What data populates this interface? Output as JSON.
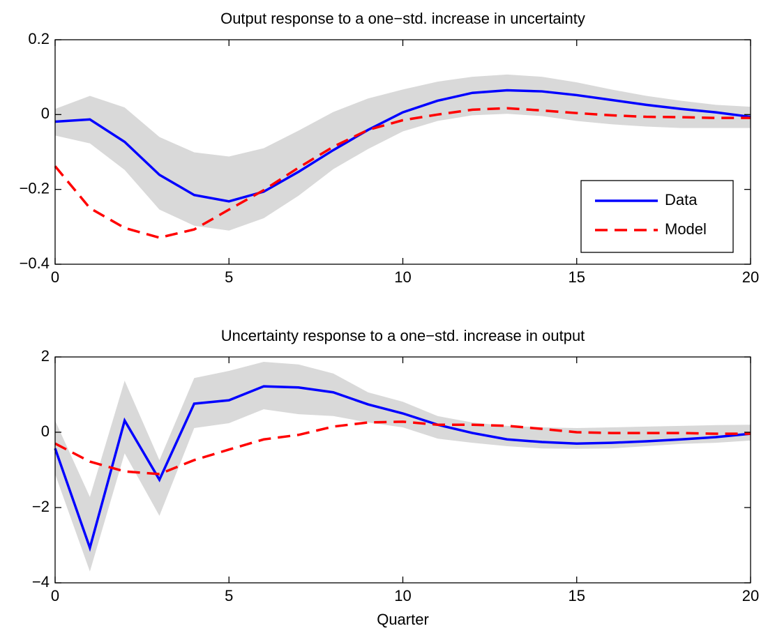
{
  "chart_data": [
    {
      "type": "line",
      "title": "Output response to a one−std. increase in uncertainty",
      "x": [
        0,
        1,
        2,
        3,
        4,
        5,
        6,
        7,
        8,
        9,
        10,
        11,
        12,
        13,
        14,
        15,
        16,
        17,
        18,
        19,
        20
      ],
      "xlim": [
        0,
        20
      ],
      "xticks": [
        0,
        5,
        10,
        15,
        20
      ],
      "ylim": [
        -0.4,
        0.2
      ],
      "yticks": [
        0.2,
        0,
        {
          "value": -0.2,
          "label": "−0.2"
        },
        {
          "value": -0.4,
          "label": "−0.4"
        }
      ],
      "legend": "lower right",
      "band": {
        "color": "#d9d9d9",
        "upper": [
          0.015,
          0.05,
          0.019,
          -0.06,
          -0.101,
          -0.112,
          -0.09,
          -0.043,
          0.007,
          0.043,
          0.067,
          0.088,
          0.101,
          0.107,
          0.101,
          0.086,
          0.067,
          0.05,
          0.037,
          0.026,
          0.021
        ],
        "lower": [
          -0.056,
          -0.077,
          -0.148,
          -0.254,
          -0.297,
          -0.31,
          -0.277,
          -0.217,
          -0.146,
          -0.092,
          -0.045,
          -0.017,
          -0.002,
          0.002,
          -0.004,
          -0.017,
          -0.026,
          -0.032,
          -0.036,
          -0.036,
          -0.036
        ]
      },
      "series": [
        {
          "name": "Data",
          "color": "#0000ff",
          "dash": "solid",
          "values": [
            -0.019,
            -0.013,
            -0.073,
            -0.161,
            -0.215,
            -0.232,
            -0.206,
            -0.153,
            -0.095,
            -0.041,
            0.006,
            0.037,
            0.058,
            0.065,
            0.062,
            0.052,
            0.039,
            0.026,
            0.015,
            0.006,
            -0.006
          ]
        },
        {
          "name": "Model",
          "color": "#ff0000",
          "dash": "dashed",
          "values": [
            -0.138,
            -0.25,
            -0.303,
            -0.329,
            -0.307,
            -0.254,
            -0.202,
            -0.142,
            -0.086,
            -0.041,
            -0.015,
            0.0,
            0.013,
            0.017,
            0.011,
            0.004,
            -0.002,
            -0.006,
            -0.007,
            -0.009,
            -0.009
          ]
        }
      ]
    },
    {
      "type": "line",
      "title": "Uncertainty response to a one−std. increase in output",
      "xlabel": "Quarter",
      "x": [
        0,
        1,
        2,
        3,
        4,
        5,
        6,
        7,
        8,
        9,
        10,
        11,
        12,
        13,
        14,
        15,
        16,
        17,
        18,
        19,
        20
      ],
      "xlim": [
        0,
        20
      ],
      "xticks": [
        0,
        5,
        10,
        15,
        20
      ],
      "ylim": [
        -4,
        2
      ],
      "yticks": [
        2,
        0,
        {
          "value": -2,
          "label": "−2"
        },
        {
          "value": -4,
          "label": "−4"
        }
      ],
      "band": {
        "color": "#d9d9d9",
        "upper": [
          0.31,
          -1.72,
          1.37,
          -0.74,
          1.44,
          1.63,
          1.87,
          1.8,
          1.56,
          1.06,
          0.81,
          0.43,
          0.26,
          0.17,
          0.13,
          0.11,
          0.13,
          0.15,
          0.17,
          0.19,
          0.2
        ],
        "lower": [
          -1.11,
          -3.7,
          -0.56,
          -2.22,
          0.11,
          0.24,
          0.61,
          0.48,
          0.43,
          0.26,
          0.13,
          -0.17,
          -0.28,
          -0.37,
          -0.43,
          -0.44,
          -0.43,
          -0.37,
          -0.31,
          -0.28,
          -0.22
        ]
      },
      "series": [
        {
          "color": "#0000ff",
          "dash": "solid",
          "values": [
            -0.43,
            -3.07,
            0.31,
            -1.26,
            0.76,
            0.85,
            1.22,
            1.19,
            1.06,
            0.74,
            0.5,
            0.2,
            -0.02,
            -0.19,
            -0.26,
            -0.3,
            -0.28,
            -0.24,
            -0.19,
            -0.13,
            -0.04
          ]
        },
        {
          "color": "#ff0000",
          "dash": "dashed",
          "values": [
            -0.3,
            -0.78,
            -1.04,
            -1.11,
            -0.74,
            -0.46,
            -0.19,
            -0.07,
            0.15,
            0.26,
            0.28,
            0.2,
            0.2,
            0.17,
            0.09,
            0.0,
            -0.02,
            -0.02,
            -0.02,
            -0.04,
            -0.04
          ]
        }
      ]
    }
  ]
}
